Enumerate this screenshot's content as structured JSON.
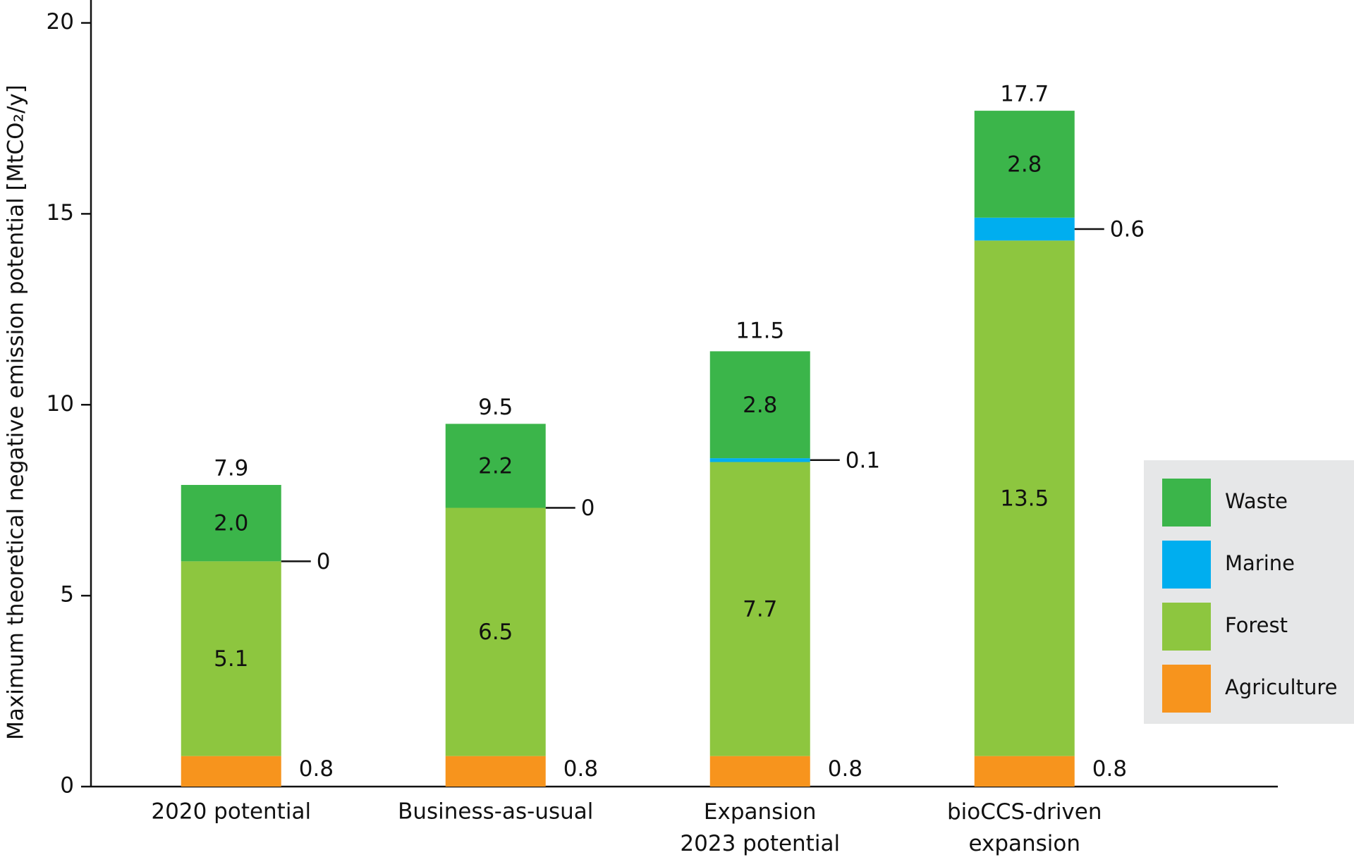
{
  "chart_data": {
    "type": "stacked-bar",
    "y_label": "Maximum theoretical negative emission potential [MtCO₂/y]",
    "categories": [
      "2020 potential",
      "Business-as-usual",
      "Expansion\n2023 potential",
      "bioCCS-driven\nexpansion"
    ],
    "series": [
      {
        "name": "Agriculture",
        "color": "#f7941d",
        "values": [
          0.8,
          0.8,
          0.8,
          0.8
        ]
      },
      {
        "name": "Forest",
        "color": "#8dc63f",
        "values": [
          5.1,
          6.5,
          7.7,
          13.5
        ]
      },
      {
        "name": "Marine",
        "color": "#00aeef",
        "values": [
          0,
          0,
          0.1,
          0.6
        ]
      },
      {
        "name": "Waste",
        "color": "#3bb54a",
        "values": [
          2.0,
          2.2,
          2.8,
          2.8
        ],
        "value_labels": [
          "2.0",
          "2.2",
          "2.8",
          "2.8"
        ]
      }
    ],
    "totals": [
      7.9,
      9.5,
      11.5,
      17.7
    ],
    "ylim": [
      0,
      20.6
    ],
    "yticks": [
      0,
      5,
      10,
      15,
      20
    ],
    "legend": "right"
  }
}
